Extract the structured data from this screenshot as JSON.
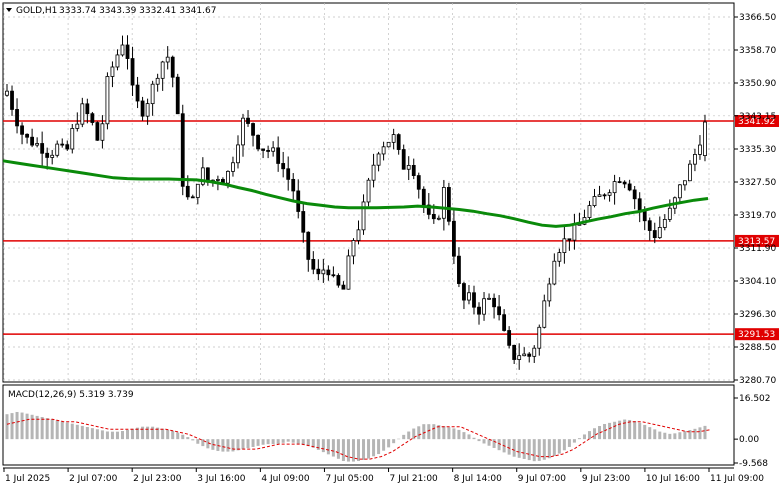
{
  "header": {
    "symbol": "GOLD,H1",
    "ohlc": "3333.74 3343.39 3332.41 3341.67",
    "menu_icon": "triangle-down-icon"
  },
  "colors": {
    "candle": "#000000",
    "ma": "#0a8a0a",
    "level": "#e00000",
    "level_label_bg": "#e00000",
    "macd_hist": "#b5b5b5",
    "macd_signal": "#e00000",
    "grid": "#c0c0c0"
  },
  "chart_data": [
    {
      "type": "candlestick",
      "title": "GOLD,H1",
      "ylim": [
        3280.7,
        3366.5
      ],
      "y_ticks": [
        "3366.50",
        "3358.70",
        "3350.90",
        "3343.15",
        "3335.30",
        "3327.50",
        "3319.70",
        "3311.90",
        "3304.10",
        "3296.30",
        "3288.50",
        "3280.70"
      ],
      "x_ticks": [
        "1 Jul 2025",
        "2 Jul 07:00",
        "2 Jul 23:00",
        "3 Jul 16:00",
        "4 Jul 09:00",
        "7 Jul 05:00",
        "7 Jul 21:00",
        "8 Jul 14:00",
        "9 Jul 07:00",
        "9 Jul 23:00",
        "10 Jul 16:00",
        "11 Jul 09:00"
      ],
      "levels": [
        {
          "label": "3341.92",
          "value": 3341.92
        },
        {
          "label": "3313.57",
          "value": 3313.57
        },
        {
          "label": "3291.53",
          "value": 3291.53
        }
      ],
      "close_path": [
        3349,
        3343,
        3338,
        3337,
        3336,
        3334,
        3336,
        3334,
        3341,
        3345,
        3342,
        3336,
        3352,
        3357,
        3362,
        3348,
        3344,
        3348,
        3354,
        3358,
        3350,
        3325,
        3322,
        3331,
        3327,
        3329,
        3328,
        3334,
        3342,
        3340,
        3336,
        3335,
        3334,
        3330,
        3326,
        3316,
        3308,
        3305,
        3308,
        3303,
        3302,
        3313,
        3318,
        3327,
        3335,
        3337,
        3338,
        3331,
        3333,
        3326,
        3319,
        3317,
        3326,
        3313,
        3299,
        3300,
        3297,
        3300,
        3299,
        3292,
        3286,
        3287,
        3286,
        3290,
        3300,
        3310,
        3313,
        3315,
        3317,
        3321,
        3323,
        3325,
        3327,
        3329,
        3327,
        3322,
        3317,
        3315,
        3318,
        3321,
        3326,
        3330,
        3335,
        3341.67
      ],
      "ma_path": [
        3332.5,
        3332,
        3331.5,
        3331,
        3330.5,
        3330,
        3329.5,
        3329,
        3328.5,
        3328.3,
        3328.2,
        3328.2,
        3328.2,
        3328.1,
        3328,
        3327.6,
        3327,
        3326.2,
        3325.5,
        3324.6,
        3323.8,
        3323,
        3322.4,
        3322,
        3321.6,
        3321.4,
        3321.4,
        3321.4,
        3321.5,
        3321.6,
        3321.8,
        3321.6,
        3321.3,
        3321,
        3320.6,
        3320,
        3319.5,
        3318.8,
        3318,
        3317.3,
        3317,
        3317.3,
        3318,
        3318.7,
        3319.3,
        3320,
        3320.5,
        3321.3,
        3322,
        3322.6,
        3323.2,
        3323.6
      ],
      "series": []
    },
    {
      "type": "bar",
      "title": "MACD(12,26,9) 5.319 3.739",
      "ylim": [
        -9.568,
        16.502
      ],
      "y_ticks": [
        "16.502",
        "0.00",
        "-9.568"
      ],
      "hist": [
        10,
        11,
        10,
        9,
        8,
        7,
        6,
        5,
        4,
        3,
        3,
        4,
        5,
        5,
        4,
        3,
        1,
        -2,
        -4,
        -5,
        -5,
        -4,
        -3,
        -2,
        -2,
        -1,
        -2,
        -3,
        -5,
        -7,
        -9,
        -9,
        -8,
        -6,
        -3,
        1,
        4,
        6,
        6,
        5,
        4,
        2,
        -1,
        -3,
        -5,
        -7,
        -8,
        -9,
        -8,
        -6,
        -3,
        1,
        4,
        6,
        7,
        8,
        7,
        5,
        3,
        2,
        3,
        4,
        5.319
      ],
      "signal": [
        6,
        7,
        8,
        8,
        8,
        7,
        7,
        6,
        5,
        4,
        4,
        4,
        4,
        4,
        4,
        3,
        2,
        0,
        -2,
        -3,
        -4,
        -4,
        -4,
        -3,
        -2,
        -2,
        -2,
        -3,
        -4,
        -5,
        -7,
        -8,
        -8,
        -7,
        -5,
        -2,
        1,
        3,
        5,
        5,
        5,
        3,
        1,
        -1,
        -3,
        -5,
        -6,
        -7,
        -7,
        -6,
        -4,
        -1,
        2,
        4,
        6,
        7,
        7,
        6,
        5,
        4,
        3,
        3,
        3.739
      ]
    }
  ]
}
